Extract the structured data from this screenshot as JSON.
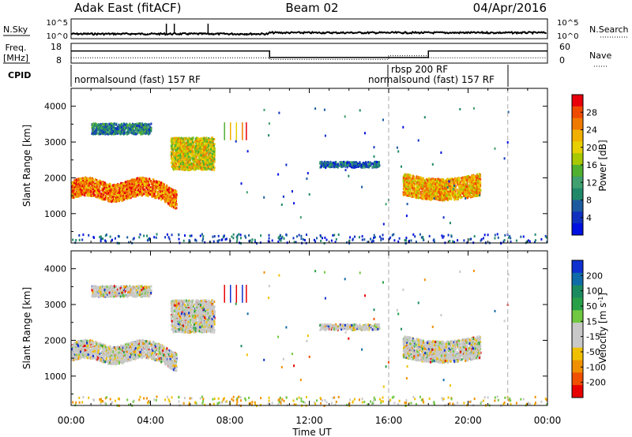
{
  "header": {
    "station_title": "Adak East (fitACF)",
    "beam": "Beam 02",
    "date": "04/Apr/2016"
  },
  "noise_panel": {
    "left_label": "N.Sky",
    "right_label": "N.Search",
    "left_ticks": [
      "10^5",
      "10^0"
    ],
    "right_ticks": [
      "10^5",
      "10^0"
    ]
  },
  "freq_panel": {
    "left_label_line1": "Freq.",
    "left_label_line2": "[MHz]",
    "right_label": "Nave",
    "left_ticks": [
      "18",
      "8"
    ],
    "right_ticks": [
      "60",
      "0"
    ]
  },
  "cpid": {
    "label": "CPID",
    "segments": [
      {
        "label": "normalsound (fast) 157 RF",
        "start_hour": 0
      },
      {
        "label": "rbsp 200 RF",
        "start_hour": 16
      },
      {
        "label": "normalsound (fast) 157 RF",
        "start_hour": 16
      }
    ]
  },
  "x_axis": {
    "label": "Time UT",
    "ticks": [
      "00:00",
      "04:00",
      "08:00",
      "12:00",
      "16:00",
      "20:00",
      "00:00"
    ],
    "tick_hours": [
      0,
      4,
      8,
      12,
      16,
      20,
      24
    ],
    "range_hours": [
      0,
      24
    ],
    "dashed_markers_hours": [
      16,
      22
    ]
  },
  "power_colorbar": {
    "label": "Power [dB]",
    "ticks": [
      "28",
      "24",
      "20",
      "16",
      "12",
      "8",
      "4"
    ],
    "colors": [
      "#e8000b",
      "#f04a00",
      "#f07a00",
      "#f0b000",
      "#e8d000",
      "#a8c800",
      "#50b030",
      "#40a070",
      "#208868",
      "#1c5aa0",
      "#1030c0",
      "#0010e0"
    ]
  },
  "velocity_colorbar": {
    "label_main": "Velocity [m s",
    "label_sup": "-1",
    "label_end": "]",
    "ticks": [
      "200",
      "100",
      "50",
      "15",
      "-15",
      "-50",
      "-100",
      "-200"
    ],
    "colors": [
      "#1030d0",
      "#106ca8",
      "#1c8a60",
      "#28a048",
      "#70c840",
      "#c8c8c8",
      "#c8c8c8",
      "#f0c000",
      "#f09000",
      "#f05000",
      "#e80000"
    ]
  },
  "chart_data": [
    {
      "type": "line",
      "name": "noise",
      "x_range": [
        0,
        24
      ],
      "segments_log10_level": [
        {
          "x": [
            0,
            10
          ],
          "y": 1.2
        },
        {
          "x": [
            10,
            24
          ],
          "y": 1.5
        }
      ],
      "spikes_hours": [
        4.8,
        5.2,
        6.9
      ]
    },
    {
      "type": "line",
      "name": "frequency",
      "ylim": [
        8,
        18
      ],
      "steps": [
        {
          "x": [
            0,
            10
          ],
          "freq": 14.5,
          "nave": 12
        },
        {
          "x": [
            10,
            16
          ],
          "freq": 10.2,
          "nave": 5
        },
        {
          "x": [
            16,
            18
          ],
          "freq": 10.2,
          "nave": 20
        },
        {
          "x": [
            18,
            24
          ],
          "freq": 14.5,
          "nave": 12
        }
      ]
    },
    {
      "type": "heatmap",
      "name": "power",
      "xlabel": "Time UT",
      "ylabel": "Slant Range [km]",
      "x_range_hours": [
        0,
        24
      ],
      "y_range_km": [
        180,
        4500
      ],
      "y_ticks": [
        1000,
        2000,
        3000,
        4000
      ],
      "regions": [
        {
          "x": [
            0,
            5.3
          ],
          "y_center": 1700,
          "y_spread": 250,
          "level": 9
        },
        {
          "x": [
            5.0,
            7.2
          ],
          "y_center": 2700,
          "y_spread": 450,
          "level": 7
        },
        {
          "x": [
            1.0,
            4.0
          ],
          "y_center": 3400,
          "y_spread": 150,
          "level": 3
        },
        {
          "x": [
            16.7,
            20.6
          ],
          "y_center": 1800,
          "y_spread": 300,
          "level": 8
        },
        {
          "x": [
            12.5,
            15.5
          ],
          "y_center": 2400,
          "y_spread": 80,
          "level": 2
        }
      ]
    },
    {
      "type": "heatmap",
      "name": "velocity",
      "xlabel": "Time UT",
      "ylabel": "Slant Range [km]",
      "x_range_hours": [
        0,
        24
      ],
      "y_range_km": [
        180,
        4500
      ],
      "y_ticks": [
        1000,
        2000,
        3000,
        4000
      ]
    }
  ]
}
